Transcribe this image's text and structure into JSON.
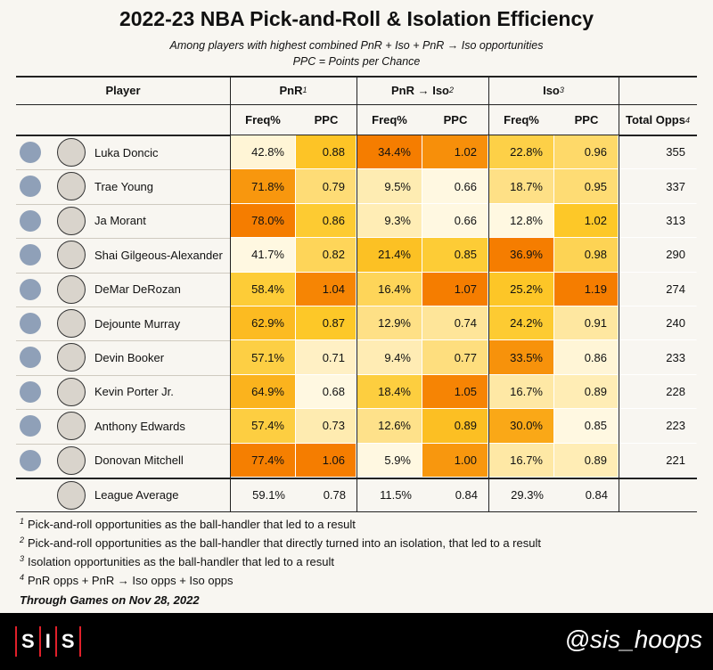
{
  "header": {
    "title": "2022-23 NBA Pick-and-Roll & Isolation Efficiency",
    "subtitle": [
      "Among players with highest combined PnR + Iso + PnR → Iso opportunities",
      "PPC = Points per Chance"
    ]
  },
  "table": {
    "groups": [
      {
        "text": "Player"
      },
      {
        "text": "PnR",
        "note": "1"
      },
      {
        "text": "PnR → Iso",
        "note": "2"
      },
      {
        "text": "Iso",
        "note": "3"
      }
    ],
    "columns": [
      {
        "text": "Freq%"
      },
      {
        "text": "PPC"
      },
      {
        "text": "Freq%"
      },
      {
        "text": "PPC"
      },
      {
        "text": "Freq%"
      },
      {
        "text": "PPC"
      },
      {
        "text": "Total Opps",
        "note": "4"
      }
    ],
    "rows": [
      {
        "name": "Luka Doncic",
        "cells": [
          "42.8%",
          "0.88",
          "34.4%",
          "1.02",
          "22.8%",
          "0.96",
          "355"
        ]
      },
      {
        "name": "Trae Young",
        "cells": [
          "71.8%",
          "0.79",
          "9.5%",
          "0.66",
          "18.7%",
          "0.95",
          "337"
        ]
      },
      {
        "name": "Ja Morant",
        "cells": [
          "78.0%",
          "0.86",
          "9.3%",
          "0.66",
          "12.8%",
          "1.02",
          "313"
        ]
      },
      {
        "name": "Shai Gilgeous-Alexander",
        "cells": [
          "41.7%",
          "0.82",
          "21.4%",
          "0.85",
          "36.9%",
          "0.98",
          "290"
        ]
      },
      {
        "name": "DeMar DeRozan",
        "cells": [
          "58.4%",
          "1.04",
          "16.4%",
          "1.07",
          "25.2%",
          "1.19",
          "274"
        ]
      },
      {
        "name": "Dejounte Murray",
        "cells": [
          "62.9%",
          "0.87",
          "12.9%",
          "0.74",
          "24.2%",
          "0.91",
          "240"
        ]
      },
      {
        "name": "Devin Booker",
        "cells": [
          "57.1%",
          "0.71",
          "9.4%",
          "0.77",
          "33.5%",
          "0.86",
          "233"
        ]
      },
      {
        "name": "Kevin Porter Jr.",
        "cells": [
          "64.9%",
          "0.68",
          "18.4%",
          "1.05",
          "16.7%",
          "0.89",
          "228"
        ]
      },
      {
        "name": "Anthony Edwards",
        "cells": [
          "57.4%",
          "0.73",
          "12.6%",
          "0.89",
          "30.0%",
          "0.85",
          "223"
        ]
      },
      {
        "name": "Donovan Mitchell",
        "cells": [
          "77.4%",
          "1.06",
          "5.9%",
          "1.00",
          "16.7%",
          "0.89",
          "221"
        ]
      }
    ],
    "average": {
      "name": "League Average",
      "cells": [
        "59.1%",
        "0.78",
        "11.5%",
        "0.84",
        "29.3%",
        "0.84"
      ]
    }
  },
  "footnotes": [
    {
      "note": "1",
      "text": "Pick-and-roll opportunities as the ball-handler that led to a result"
    },
    {
      "note": "2",
      "text": "Pick-and-roll opportunities as the ball-handler that directly turned into an isolation, that led to a result"
    },
    {
      "note": "3",
      "text": "Isolation opportunities as the ball-handler that led to a result"
    },
    {
      "note": "4",
      "text": "PnR opps + PnR → Iso opps + Iso opps"
    }
  ],
  "through": "Through Games on Nov 28, 2022",
  "footer": {
    "logo": [
      "S",
      "I",
      "S"
    ],
    "handle": "@sis_hoops"
  }
}
